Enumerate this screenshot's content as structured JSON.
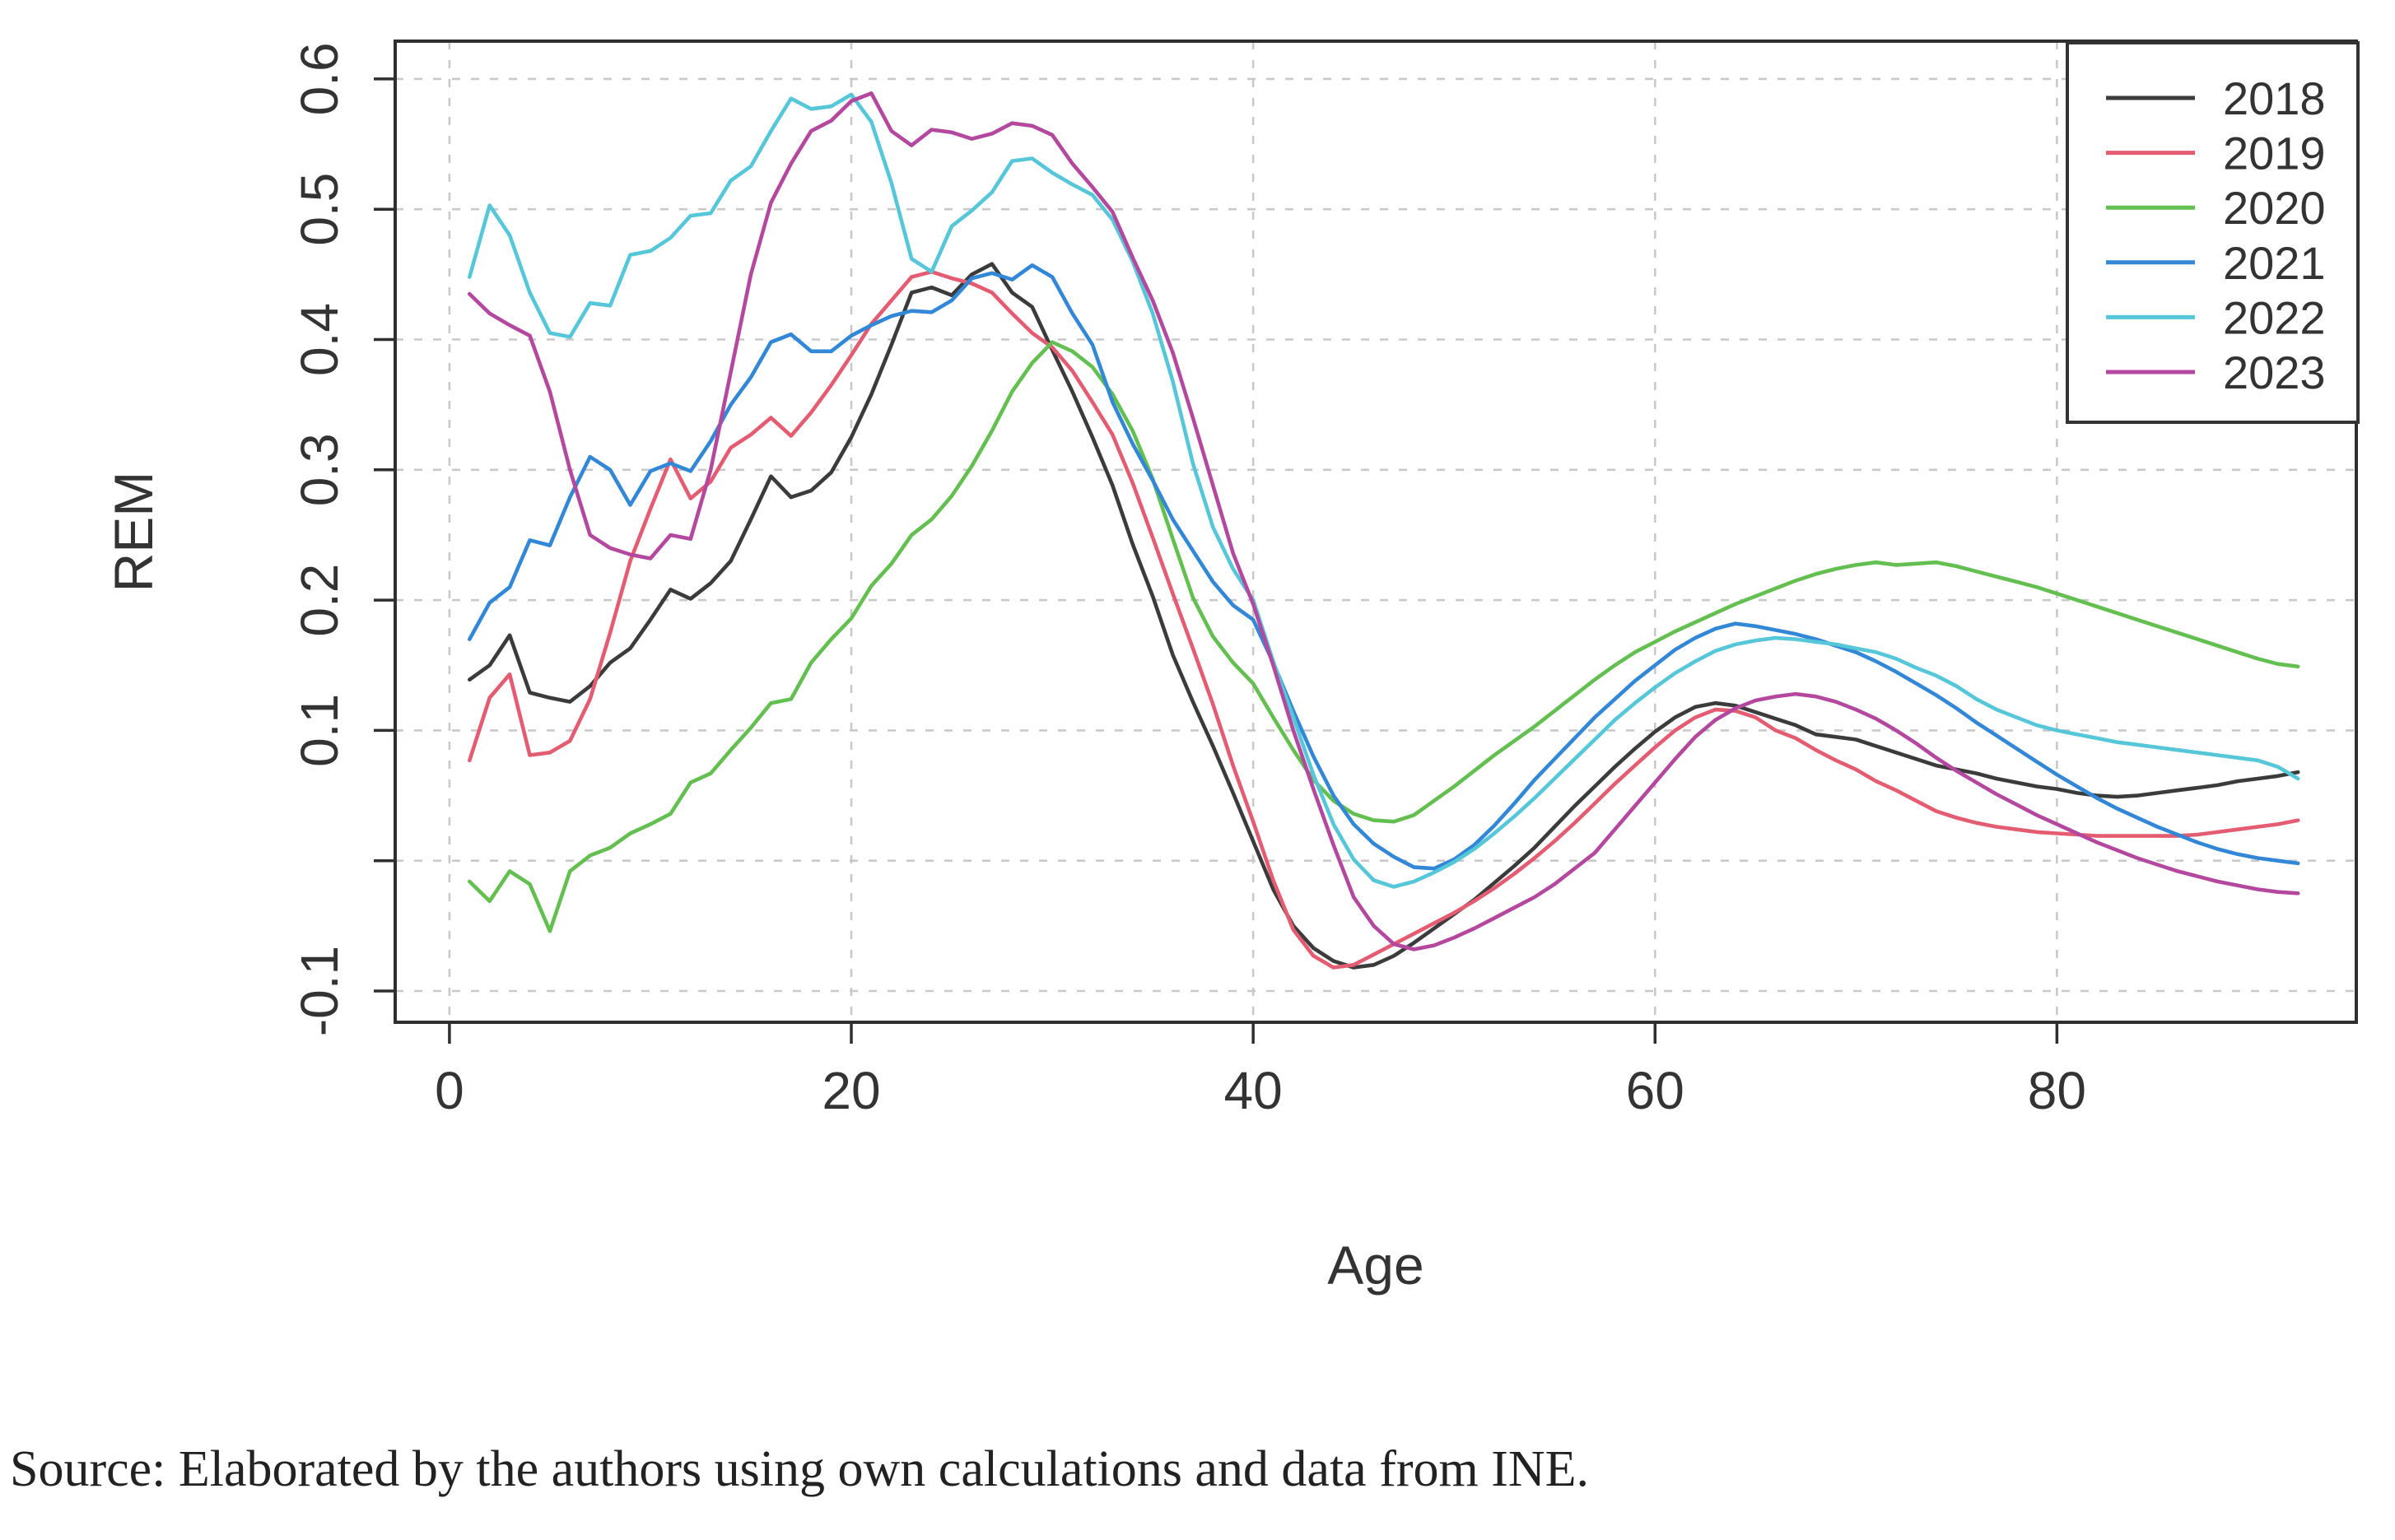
{
  "source_note": "Source: Elaborated by the authors using own calculations and data from INE.",
  "colors": {
    "frame": "#2f2f2f",
    "grid": "#c9c9c9",
    "text": "#333333",
    "legend_border": "#333333",
    "background": "#ffffff"
  },
  "legend": {
    "position": "top-right",
    "entries": [
      "2018",
      "2019",
      "2020",
      "2021",
      "2022",
      "2023"
    ]
  },
  "chart_data": {
    "type": "line",
    "title": "",
    "xlabel": "Age",
    "ylabel": "REM",
    "xlim": [
      -2.7,
      94.9
    ],
    "ylim": [
      -0.124,
      0.629
    ],
    "grid": true,
    "legend_position": "top-right",
    "xticks": [
      {
        "v": 0,
        "label": "0"
      },
      {
        "v": 20,
        "label": "20"
      },
      {
        "v": 40,
        "label": "40"
      },
      {
        "v": 60,
        "label": "60"
      },
      {
        "v": 80,
        "label": "80"
      }
    ],
    "yticks": [
      {
        "v": 0.6,
        "label": "0.6"
      },
      {
        "v": 0.5,
        "label": "0.5"
      },
      {
        "v": 0.4,
        "label": "0.4"
      },
      {
        "v": 0.3,
        "label": "0.3"
      },
      {
        "v": 0.2,
        "label": "0.2"
      },
      {
        "v": 0.1,
        "label": "0.1"
      },
      {
        "v": 0.0,
        "label": ""
      },
      {
        "v": -0.1,
        "label": "-0.1"
      }
    ],
    "x": [
      1,
      2,
      3,
      4,
      5,
      6,
      7,
      8,
      9,
      10,
      11,
      12,
      13,
      14,
      15,
      16,
      17,
      18,
      19,
      20,
      21,
      22,
      23,
      24,
      25,
      26,
      27,
      28,
      29,
      30,
      31,
      32,
      33,
      34,
      35,
      36,
      37,
      38,
      39,
      40,
      41,
      42,
      43,
      44,
      45,
      46,
      47,
      48,
      49,
      50,
      51,
      52,
      53,
      54,
      55,
      56,
      57,
      58,
      59,
      60,
      61,
      62,
      63,
      64,
      65,
      66,
      67,
      68,
      69,
      70,
      71,
      72,
      73,
      74,
      75,
      76,
      77,
      78,
      79,
      80,
      81,
      82,
      83,
      84,
      85,
      86,
      87,
      88,
      89,
      90,
      91,
      92
    ],
    "series": [
      {
        "name": "2018",
        "color": "#3b3b3b",
        "values": [
          0.139,
          0.15,
          0.173,
          0.129,
          0.125,
          0.122,
          0.134,
          0.152,
          0.163,
          0.185,
          0.208,
          0.201,
          0.213,
          0.23,
          0.262,
          0.295,
          0.279,
          0.284,
          0.298,
          0.325,
          0.358,
          0.396,
          0.436,
          0.44,
          0.434,
          0.45,
          0.458,
          0.436,
          0.425,
          0.392,
          0.36,
          0.325,
          0.288,
          0.243,
          0.203,
          0.158,
          0.122,
          0.088,
          0.052,
          0.015,
          -0.022,
          -0.05,
          -0.067,
          -0.077,
          -0.082,
          -0.08,
          -0.073,
          -0.063,
          -0.052,
          -0.041,
          -0.03,
          -0.017,
          -0.004,
          0.01,
          0.026,
          0.042,
          0.057,
          0.072,
          0.086,
          0.099,
          0.11,
          0.118,
          0.121,
          0.119,
          0.114,
          0.109,
          0.104,
          0.097,
          0.095,
          0.093,
          0.088,
          0.083,
          0.078,
          0.073,
          0.07,
          0.067,
          0.063,
          0.06,
          0.057,
          0.055,
          0.052,
          0.05,
          0.049,
          0.05,
          0.052,
          0.054,
          0.056,
          0.058,
          0.061,
          0.063,
          0.065,
          0.068
        ]
      },
      {
        "name": "2019",
        "color": "#e45c71",
        "values": [
          0.077,
          0.125,
          0.143,
          0.081,
          0.083,
          0.092,
          0.124,
          0.175,
          0.23,
          0.27,
          0.308,
          0.278,
          0.291,
          0.317,
          0.327,
          0.34,
          0.326,
          0.344,
          0.365,
          0.388,
          0.412,
          0.43,
          0.448,
          0.452,
          0.447,
          0.443,
          0.436,
          0.42,
          0.405,
          0.394,
          0.376,
          0.352,
          0.327,
          0.29,
          0.248,
          0.205,
          0.163,
          0.12,
          0.073,
          0.03,
          -0.015,
          -0.053,
          -0.073,
          -0.082,
          -0.08,
          -0.072,
          -0.064,
          -0.056,
          -0.048,
          -0.04,
          -0.031,
          -0.021,
          -0.01,
          0.002,
          0.015,
          0.029,
          0.044,
          0.059,
          0.073,
          0.087,
          0.1,
          0.11,
          0.116,
          0.115,
          0.11,
          0.1,
          0.094,
          0.085,
          0.077,
          0.07,
          0.061,
          0.054,
          0.046,
          0.038,
          0.033,
          0.029,
          0.026,
          0.024,
          0.022,
          0.021,
          0.02,
          0.019,
          0.019,
          0.019,
          0.019,
          0.019,
          0.02,
          0.022,
          0.024,
          0.026,
          0.028,
          0.031
        ]
      },
      {
        "name": "2020",
        "color": "#63bf50",
        "values": [
          -0.016,
          -0.031,
          -0.008,
          -0.018,
          -0.054,
          -0.008,
          0.004,
          0.01,
          0.021,
          0.028,
          0.036,
          0.06,
          0.067,
          0.085,
          0.102,
          0.121,
          0.124,
          0.152,
          0.17,
          0.186,
          0.211,
          0.228,
          0.25,
          0.262,
          0.28,
          0.303,
          0.33,
          0.36,
          0.382,
          0.398,
          0.391,
          0.379,
          0.358,
          0.33,
          0.293,
          0.247,
          0.202,
          0.172,
          0.152,
          0.136,
          0.11,
          0.085,
          0.062,
          0.046,
          0.036,
          0.031,
          0.03,
          0.035,
          0.046,
          0.057,
          0.069,
          0.081,
          0.092,
          0.103,
          0.115,
          0.127,
          0.139,
          0.15,
          0.16,
          0.168,
          0.176,
          0.183,
          0.19,
          0.197,
          0.203,
          0.209,
          0.215,
          0.22,
          0.224,
          0.227,
          0.229,
          0.227,
          0.228,
          0.229,
          0.226,
          0.222,
          0.218,
          0.214,
          0.21,
          0.205,
          0.2,
          0.195,
          0.19,
          0.185,
          0.18,
          0.175,
          0.17,
          0.165,
          0.16,
          0.155,
          0.151,
          0.149
        ]
      },
      {
        "name": "2021",
        "color": "#3287d6",
        "values": [
          0.17,
          0.198,
          0.21,
          0.246,
          0.242,
          0.279,
          0.31,
          0.3,
          0.273,
          0.299,
          0.305,
          0.299,
          0.322,
          0.35,
          0.371,
          0.398,
          0.404,
          0.391,
          0.391,
          0.403,
          0.411,
          0.418,
          0.422,
          0.421,
          0.43,
          0.447,
          0.451,
          0.446,
          0.457,
          0.448,
          0.42,
          0.396,
          0.352,
          0.32,
          0.292,
          0.262,
          0.238,
          0.214,
          0.196,
          0.185,
          0.152,
          0.115,
          0.08,
          0.05,
          0.028,
          0.013,
          0.003,
          -0.005,
          -0.006,
          0.001,
          0.012,
          0.027,
          0.044,
          0.062,
          0.078,
          0.094,
          0.11,
          0.124,
          0.138,
          0.15,
          0.162,
          0.171,
          0.178,
          0.182,
          0.18,
          0.177,
          0.174,
          0.17,
          0.165,
          0.16,
          0.153,
          0.145,
          0.136,
          0.127,
          0.117,
          0.106,
          0.096,
          0.086,
          0.076,
          0.066,
          0.057,
          0.048,
          0.04,
          0.033,
          0.026,
          0.02,
          0.014,
          0.009,
          0.005,
          0.002,
          0.0,
          -0.002
        ]
      },
      {
        "name": "2022",
        "color": "#56c6d9",
        "values": [
          0.448,
          0.503,
          0.48,
          0.436,
          0.405,
          0.402,
          0.428,
          0.426,
          0.465,
          0.468,
          0.478,
          0.495,
          0.497,
          0.522,
          0.533,
          0.56,
          0.585,
          0.577,
          0.579,
          0.588,
          0.567,
          0.52,
          0.462,
          0.452,
          0.487,
          0.499,
          0.513,
          0.537,
          0.539,
          0.528,
          0.519,
          0.511,
          0.492,
          0.46,
          0.42,
          0.368,
          0.305,
          0.256,
          0.224,
          0.2,
          0.153,
          0.11,
          0.066,
          0.028,
          0.001,
          -0.015,
          -0.02,
          -0.016,
          -0.009,
          -0.001,
          0.009,
          0.021,
          0.034,
          0.048,
          0.063,
          0.078,
          0.093,
          0.108,
          0.121,
          0.133,
          0.144,
          0.153,
          0.161,
          0.166,
          0.169,
          0.171,
          0.17,
          0.168,
          0.166,
          0.163,
          0.16,
          0.155,
          0.148,
          0.142,
          0.134,
          0.124,
          0.116,
          0.11,
          0.104,
          0.1,
          0.097,
          0.094,
          0.091,
          0.089,
          0.087,
          0.085,
          0.083,
          0.081,
          0.079,
          0.077,
          0.072,
          0.063
        ]
      },
      {
        "name": "2023",
        "color": "#b4489f",
        "values": [
          0.435,
          0.42,
          0.411,
          0.403,
          0.36,
          0.3,
          0.25,
          0.24,
          0.235,
          0.232,
          0.25,
          0.247,
          0.3,
          0.375,
          0.45,
          0.505,
          0.535,
          0.56,
          0.568,
          0.583,
          0.589,
          0.56,
          0.549,
          0.561,
          0.559,
          0.554,
          0.558,
          0.566,
          0.564,
          0.557,
          0.535,
          0.517,
          0.498,
          0.463,
          0.43,
          0.39,
          0.34,
          0.288,
          0.236,
          0.197,
          0.15,
          0.1,
          0.055,
          0.012,
          -0.028,
          -0.05,
          -0.064,
          -0.068,
          -0.065,
          -0.059,
          -0.052,
          -0.044,
          -0.036,
          -0.028,
          -0.018,
          -0.006,
          0.006,
          0.024,
          0.042,
          0.06,
          0.078,
          0.095,
          0.108,
          0.117,
          0.123,
          0.126,
          0.128,
          0.126,
          0.122,
          0.116,
          0.109,
          0.1,
          0.09,
          0.079,
          0.069,
          0.06,
          0.051,
          0.043,
          0.035,
          0.028,
          0.021,
          0.014,
          0.008,
          0.002,
          -0.003,
          -0.008,
          -0.012,
          -0.016,
          -0.019,
          -0.022,
          -0.024,
          -0.025
        ]
      }
    ]
  }
}
